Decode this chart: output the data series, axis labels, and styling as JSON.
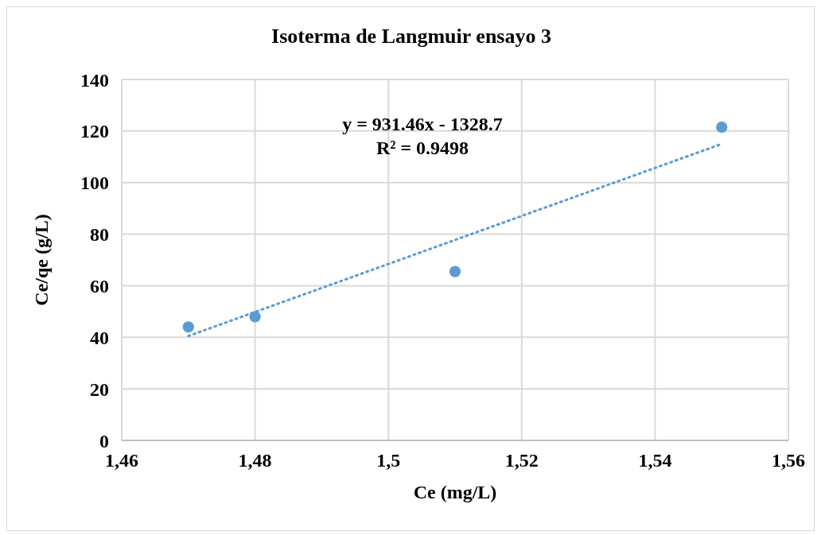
{
  "chart_data": {
    "type": "scatter",
    "title": "Isoterma de Langmuir ensayo 3",
    "xlabel": "Ce (mg/L)",
    "ylabel": "Ce/qe (g/L)",
    "annotations": [
      "y = 931.46x - 1328.7",
      "R² = 0.9498"
    ],
    "series": [
      {
        "color": "#5b9bd5",
        "x": [
          1.47,
          1.48,
          1.51,
          1.55
        ],
        "values": [
          44,
          48,
          65.5,
          121.5
        ],
        "marker": "circle"
      },
      {
        "type": "line",
        "color": "#5b9bd5",
        "x": [
          1.47,
          1.55
        ],
        "values": [
          40.5,
          115
        ],
        "line_style": "dotted",
        "marker": "none"
      }
    ],
    "xlim": [
      1.46,
      1.56
    ],
    "xticks": [
      {
        "value": 1.46,
        "label": "1,46"
      },
      {
        "value": 1.48,
        "label": "1,48"
      },
      {
        "value": 1.5,
        "label": "1,5"
      },
      {
        "value": 1.52,
        "label": "1,52"
      },
      {
        "value": 1.54,
        "label": "1,54"
      },
      {
        "value": 1.56,
        "label": "1,56"
      }
    ],
    "ylim": [
      0,
      140
    ],
    "yticks": [
      0,
      20,
      40,
      60,
      80,
      100,
      120,
      140
    ],
    "grid": true,
    "legend": false
  }
}
